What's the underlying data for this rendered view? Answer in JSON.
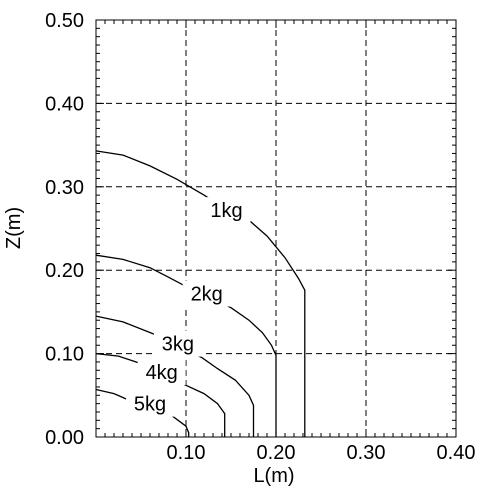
{
  "chart_data": {
    "type": "line",
    "title": "",
    "xlabel": "L(m)",
    "ylabel": "Z(m)",
    "xlim": [
      0,
      0.4
    ],
    "ylim": [
      0,
      0.5
    ],
    "x_ticks": [
      {
        "value": 0.1,
        "label": "0.10"
      },
      {
        "value": 0.2,
        "label": "0.20"
      },
      {
        "value": 0.3,
        "label": "0.30"
      },
      {
        "value": 0.4,
        "label": "0.40"
      }
    ],
    "y_ticks": [
      {
        "value": 0.0,
        "label": "0.00"
      },
      {
        "value": 0.1,
        "label": "0.10"
      },
      {
        "value": 0.2,
        "label": "0.20"
      },
      {
        "value": 0.3,
        "label": "0.30"
      },
      {
        "value": 0.4,
        "label": "0.40"
      },
      {
        "value": 0.5,
        "label": "0.50"
      }
    ],
    "grid": true,
    "grid_style": "dashed",
    "series": [
      {
        "name": "1kg",
        "label_at": [
          0.145,
          0.272
        ],
        "points": [
          [
            0,
            0.343
          ],
          [
            0.03,
            0.338
          ],
          [
            0.06,
            0.325
          ],
          [
            0.09,
            0.309
          ],
          [
            0.12,
            0.29
          ],
          [
            0.137,
            0.278
          ],
          [
            0.17,
            0.26
          ],
          [
            0.19,
            0.241
          ],
          [
            0.21,
            0.215
          ],
          [
            0.225,
            0.19
          ],
          [
            0.232,
            0.176
          ],
          [
            0.232,
            0
          ]
        ]
      },
      {
        "name": "2kg",
        "label_at": [
          0.123,
          0.172
        ],
        "points": [
          [
            0,
            0.218
          ],
          [
            0.03,
            0.213
          ],
          [
            0.06,
            0.203
          ],
          [
            0.08,
            0.192
          ],
          [
            0.101,
            0.18
          ],
          [
            0.15,
            0.155
          ],
          [
            0.17,
            0.14
          ],
          [
            0.185,
            0.125
          ],
          [
            0.195,
            0.11
          ],
          [
            0.2,
            0.098
          ],
          [
            0.2,
            0
          ]
        ]
      },
      {
        "name": "3kg",
        "label_at": [
          0.091,
          0.112
        ],
        "points": [
          [
            0,
            0.145
          ],
          [
            0.03,
            0.138
          ],
          [
            0.063,
            0.124
          ],
          [
            0.118,
            0.095
          ],
          [
            0.135,
            0.082
          ],
          [
            0.155,
            0.068
          ],
          [
            0.17,
            0.05
          ],
          [
            0.175,
            0.038
          ],
          [
            0.175,
            0
          ]
        ]
      },
      {
        "name": "4kg",
        "label_at": [
          0.073,
          0.078
        ],
        "points": [
          [
            0,
            0.1
          ],
          [
            0.025,
            0.097
          ],
          [
            0.05,
            0.088
          ],
          [
            0.1,
            0.062
          ],
          [
            0.12,
            0.052
          ],
          [
            0.135,
            0.04
          ],
          [
            0.143,
            0.028
          ],
          [
            0.143,
            0
          ]
        ]
      },
      {
        "name": "5kg",
        "label_at": [
          0.06,
          0.04
        ],
        "points": [
          [
            0,
            0.057
          ],
          [
            0.02,
            0.052
          ],
          [
            0.035,
            0.045
          ],
          [
            0.08,
            0.029
          ],
          [
            0.1,
            0.013
          ],
          [
            0.103,
            0.005
          ],
          [
            0.103,
            0
          ]
        ]
      }
    ]
  }
}
